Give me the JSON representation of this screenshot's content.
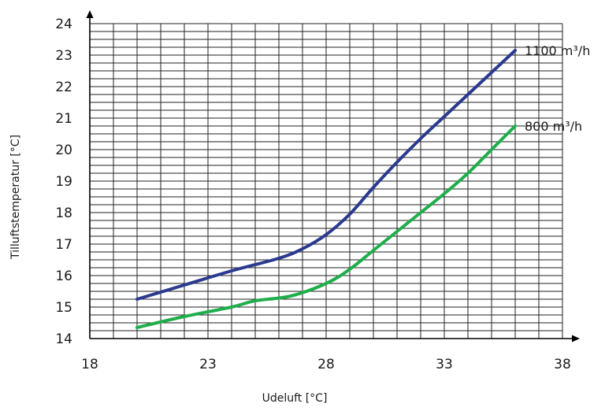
{
  "chart_data": {
    "type": "line",
    "xlabel": "Udeluft [°C]",
    "ylabel": "Tilluftstemperatur [°C]",
    "xlim": [
      18,
      38
    ],
    "ylim": [
      14,
      24
    ],
    "x_ticks": [
      "18",
      "23",
      "28",
      "33",
      "38"
    ],
    "y_ticks": [
      "14",
      "15",
      "16",
      "17",
      "18",
      "19",
      "20",
      "21",
      "22",
      "23",
      "24"
    ],
    "grid": true,
    "x_minor_step": 1,
    "y_minor_step": 0.25,
    "series": [
      {
        "name": "1100 m³/h",
        "color": "#2b3a8f",
        "x": [
          20,
          22,
          24,
          26,
          27,
          28,
          29,
          30,
          31,
          32,
          33,
          34,
          35,
          36
        ],
        "y": [
          15.25,
          15.7,
          16.15,
          16.55,
          16.85,
          17.3,
          17.95,
          18.8,
          19.6,
          20.35,
          21.05,
          21.75,
          22.45,
          23.15
        ]
      },
      {
        "name": "800 m³/h",
        "color": "#1fae4b",
        "x": [
          20,
          22,
          24,
          25,
          26.5,
          28,
          29,
          30,
          31,
          32,
          33,
          34,
          35,
          36
        ],
        "y": [
          14.35,
          14.7,
          15.0,
          15.2,
          15.35,
          15.75,
          16.2,
          16.8,
          17.4,
          18.0,
          18.6,
          19.25,
          20.0,
          20.75
        ]
      }
    ]
  }
}
